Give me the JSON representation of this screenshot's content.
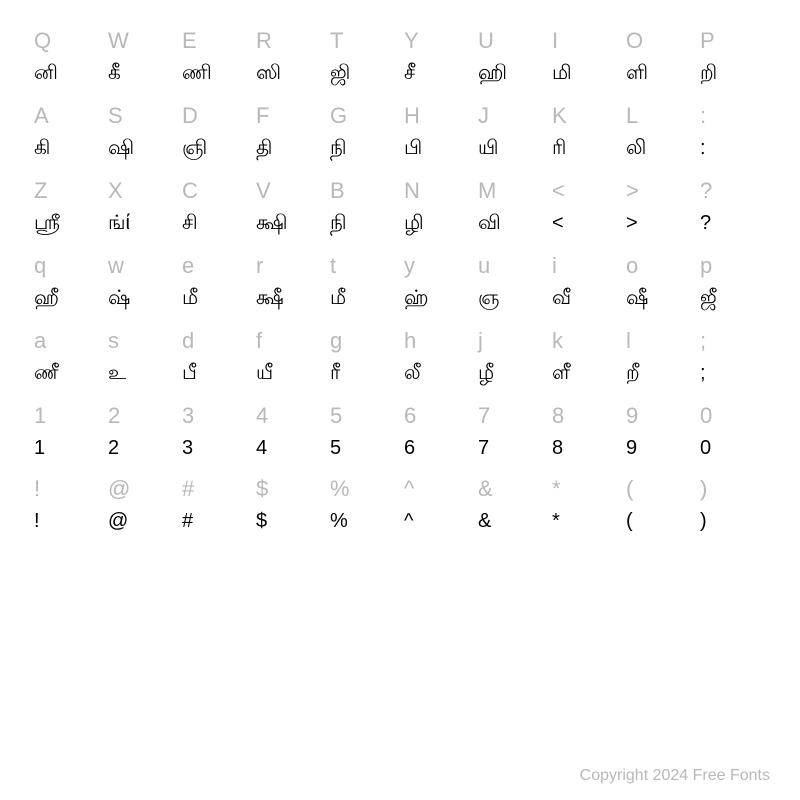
{
  "rows": [
    {
      "keys": [
        "Q",
        "W",
        "E",
        "R",
        "T",
        "Y",
        "U",
        "I",
        "O",
        "P"
      ],
      "glyphs": [
        "னி",
        "கீ",
        "ணி",
        "ஸி",
        "ஜி",
        "சீ",
        "ஹி",
        "மி",
        "ளி",
        "றி"
      ]
    },
    {
      "keys": [
        "A",
        "S",
        "D",
        "F",
        "G",
        "H",
        "J",
        "K",
        "L",
        ":"
      ],
      "glyphs": [
        "கி",
        "ஷி",
        "ஞி",
        "தி",
        "நி",
        "பி",
        "யி",
        "ரி",
        "லி",
        ":"
      ]
    },
    {
      "keys": [
        "Z",
        "X",
        "C",
        "V",
        "B",
        "N",
        "M",
        "<",
        ">",
        "?"
      ],
      "glyphs": [
        "ஸ்ரீ",
        "ங்ί",
        "சி",
        "க்ஷி",
        "நி",
        "ழி",
        "வி",
        "<",
        ">",
        "?"
      ]
    },
    {
      "keys": [
        "q",
        "w",
        "e",
        "r",
        "t",
        "y",
        "u",
        "i",
        "o",
        "p"
      ],
      "glyphs": [
        "ஹீ",
        "ஷ்",
        "மீ",
        "க்ஷீ",
        "மீ",
        "ஹ்",
        "ஞ",
        "வீ",
        "ஷீ",
        "ஜீ"
      ]
    },
    {
      "keys": [
        "a",
        "s",
        "d",
        "f",
        "g",
        "h",
        "j",
        "k",
        "l",
        ";"
      ],
      "glyphs": [
        "ணீ",
        "உ",
        "பீ",
        "யீ",
        "ரீ",
        "லீ",
        "ழீ",
        "ளீ",
        "றீ",
        ";"
      ]
    },
    {
      "keys": [
        "1",
        "2",
        "3",
        "4",
        "5",
        "6",
        "7",
        "8",
        "9",
        "0"
      ],
      "glyphs": [
        "1",
        "2",
        "3",
        "4",
        "5",
        "6",
        "7",
        "8",
        "9",
        "0"
      ]
    },
    {
      "keys": [
        "!",
        "@",
        "#",
        "$",
        "%",
        "^",
        "&",
        "*",
        "(",
        ")"
      ],
      "glyphs": [
        "!",
        "@",
        "#",
        "$",
        "%",
        "^",
        "&",
        "*",
        "(",
        ")"
      ]
    }
  ],
  "copyright": "Copyright 2024 Free Fonts",
  "colors": {
    "background": "#ffffff",
    "label": "#b8b8b8",
    "glyph": "#000000",
    "copyright": "#b8b8b8"
  },
  "typography": {
    "label_fontsize": 22,
    "glyph_fontsize": 20,
    "copyright_fontsize": 16
  }
}
